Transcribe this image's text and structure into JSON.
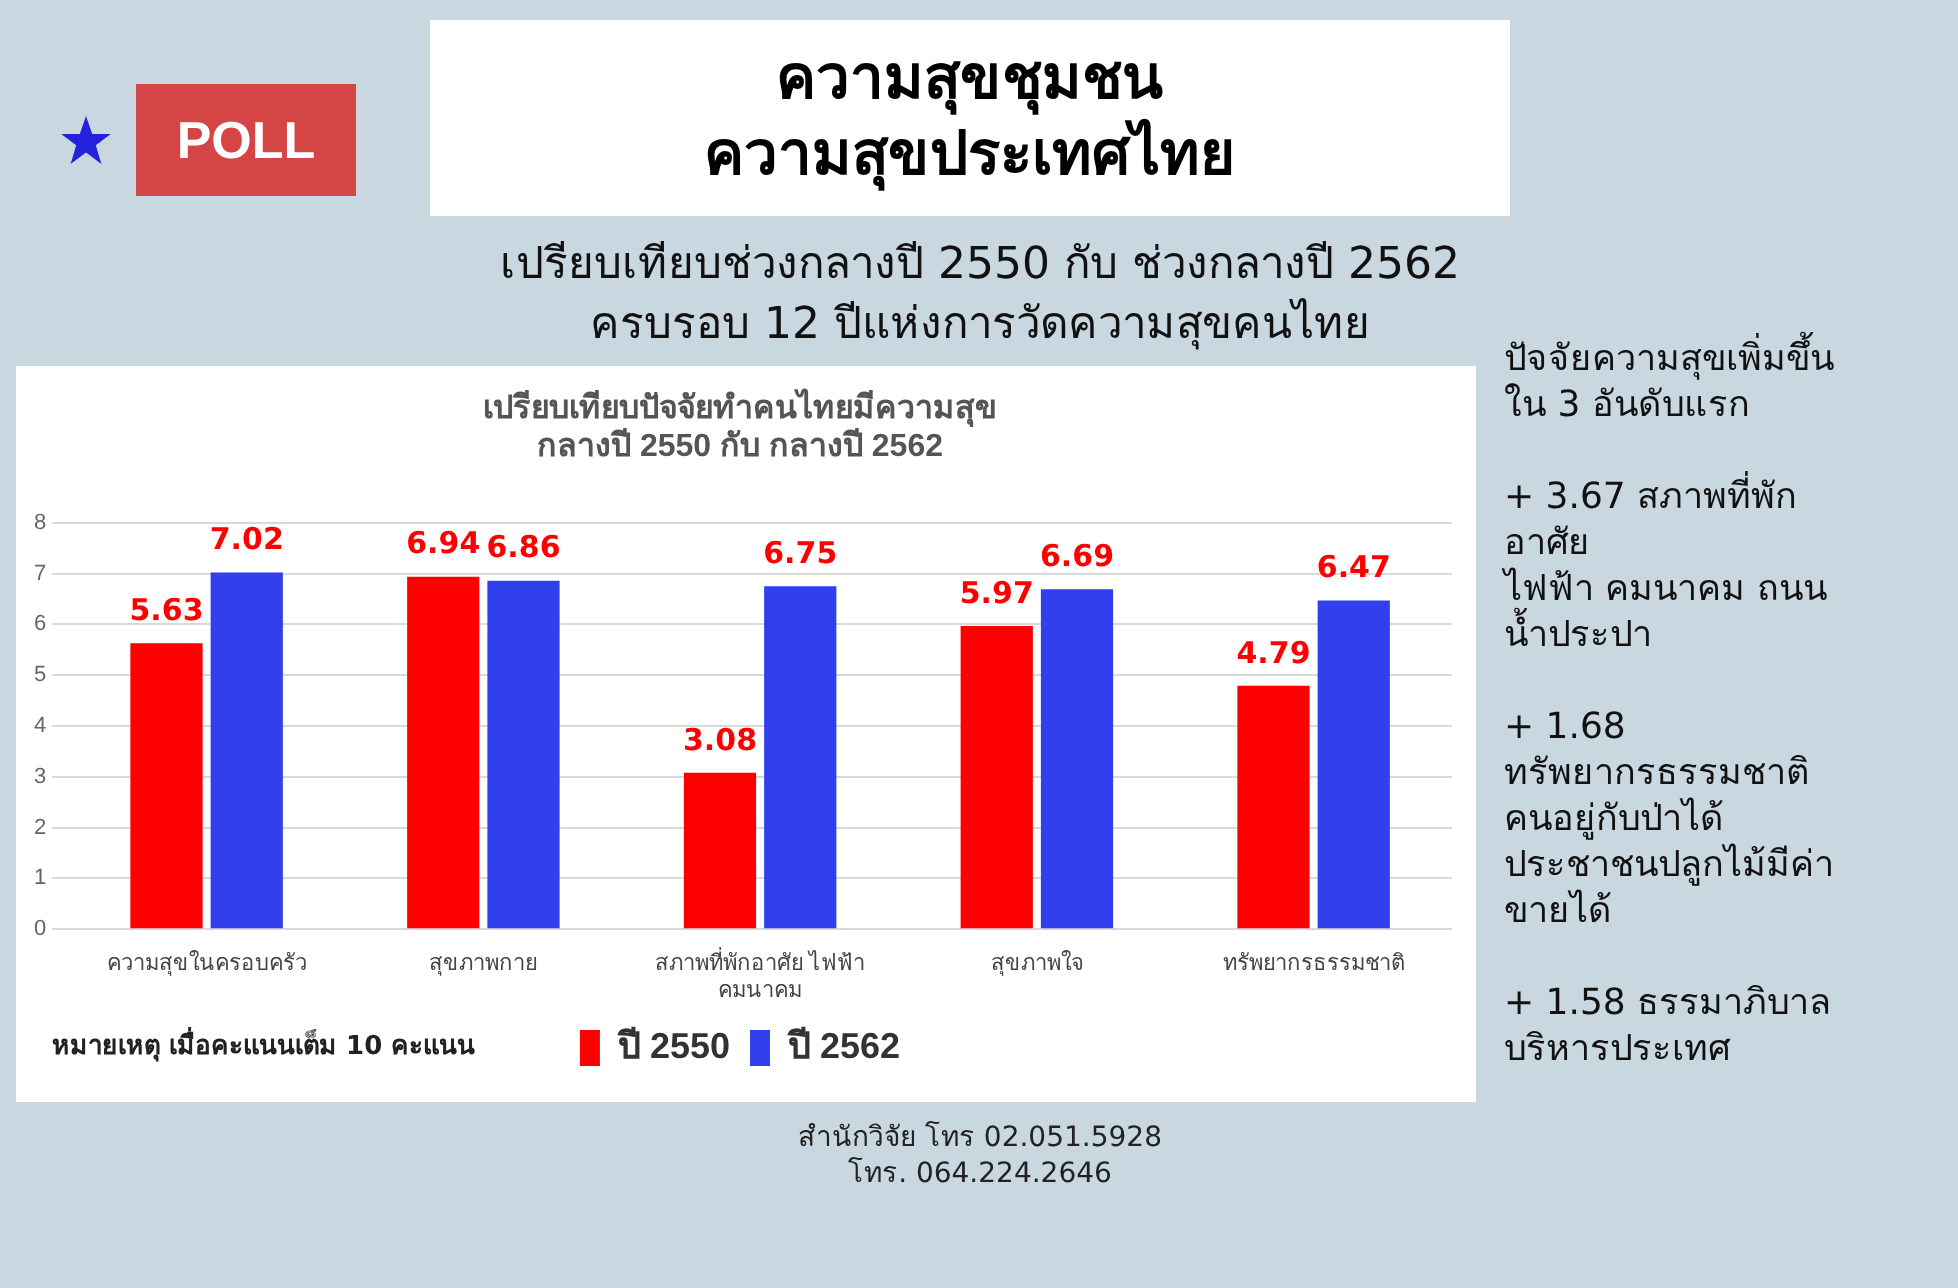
{
  "chart_data": {
    "type": "bar",
    "title": "เปรียบเทียบปัจจัยทำคนไทยมีความสุข\nกลางปี 2550 กับ กลางปี 2562",
    "categories": [
      "ความสุขในครอบครัว",
      "สุขภาพกาย",
      "สภาพที่พักอาศัย ไฟฟ้า คมนาคม",
      "สุขภาพใจ",
      "ทรัพยากรธรรมชาติ"
    ],
    "series": [
      {
        "name": "ปี 2550",
        "color": "#ff0000",
        "values": [
          5.63,
          6.94,
          3.08,
          5.97,
          4.79
        ]
      },
      {
        "name": "ปี 2562",
        "color": "#3040ee",
        "values": [
          7.02,
          6.86,
          6.75,
          6.69,
          6.47
        ]
      }
    ],
    "ylim": [
      0,
      8
    ],
    "yticks": [
      0,
      1,
      2,
      3,
      4,
      5,
      6,
      7,
      8
    ],
    "grid": "y",
    "legend": "bottom",
    "data_labels": true,
    "annotations": [
      "POLL",
      "ความสุขชุมชน\nความสุขประเทศไทย",
      "เปรียบเทียบช่วงกลางปี 2550 กับ ช่วงกลางปี 2562\nครบรอบ 12 ปีแห่งการวัดความสุขคนไทย",
      "ปัจจัยความสุขเพิ่มขึ้น\nใน 3 อันดับแรก\n\n+ 3.67 สภาพที่พัก\nอาศัย\nไฟฟ้า คมนาคม ถนน\nน้ำประปา\n\n+ 1.68\nทรัพยากรธรรมชาติ\nคนอยู่กับป่าได้\nประชาชนปลูกไม้มีค่า\nขายได้\n\n+ 1.58 ธรรมาภิบาล\nบริหารประเทศ",
      "หมายเหตุ เมื่อคะแนนเต็ม 10 คะแนน",
      "สำนักวิจัย โทร 02.051.5928\nโทร. 064.224.2646"
    ]
  }
}
